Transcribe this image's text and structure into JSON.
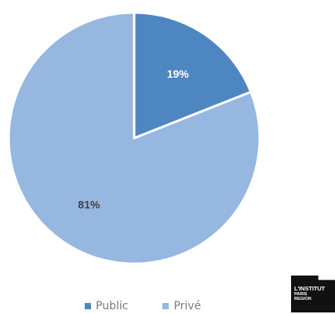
{
  "chart_data": {
    "type": "pie",
    "start_angle_deg": 0,
    "direction": "clockwise",
    "slices": [
      {
        "label": "Public",
        "value": 19,
        "display": "19%",
        "color": "#4e86c2",
        "label_color": "#ffffff"
      },
      {
        "label": "Privé",
        "value": 81,
        "display": "81%",
        "color": "#95b7e0",
        "label_color": "#404040"
      }
    ],
    "legend": {
      "placement": "bottom",
      "items": [
        {
          "label": "Public",
          "color": "#4e86c2"
        },
        {
          "label": "Privé",
          "color": "#95b7e0"
        }
      ]
    }
  },
  "logo": {
    "line1": "L'INSTITUT",
    "line2": "PARIS",
    "line3": "REGION"
  }
}
